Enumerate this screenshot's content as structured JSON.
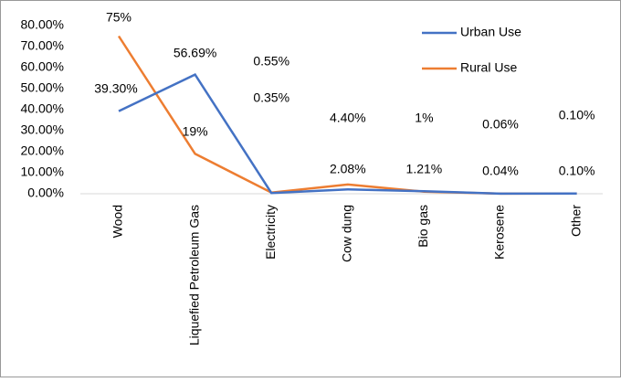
{
  "chart_data": {
    "type": "line",
    "categories": [
      "Wood",
      "Liquefied Petroleum Gas",
      "Electricity",
      "Cow dung",
      "Bio gas",
      "Kerosene",
      "Other"
    ],
    "series": [
      {
        "name": "Urban Use",
        "color": "#4472c4",
        "values": [
          39.3,
          56.69,
          0.35,
          2.08,
          1.21,
          0.04,
          0.1
        ],
        "value_labels": [
          "39.30%",
          "56.69%",
          "0.35%",
          "2.08%",
          "1.21%",
          "0.04%",
          "0.10%"
        ]
      },
      {
        "name": "Rural Use",
        "color": "#ed7d31",
        "values": [
          75,
          19,
          0.55,
          4.4,
          1,
          0.06,
          0.1
        ],
        "value_labels": [
          "75%",
          "19%",
          "0.55%",
          "4.40%",
          "1%",
          "0.06%",
          "0.10%"
        ]
      }
    ],
    "ylim": [
      0,
      80
    ],
    "yticks": [
      {
        "value": 0,
        "label": "0.00%"
      },
      {
        "value": 10,
        "label": "10.00%"
      },
      {
        "value": 20,
        "label": "20.00%"
      },
      {
        "value": 30,
        "label": "30.00%"
      },
      {
        "value": 40,
        "label": "40.00%"
      },
      {
        "value": 50,
        "label": "50.00%"
      },
      {
        "value": 60,
        "label": "60.00%"
      },
      {
        "value": 70,
        "label": "70.00%"
      },
      {
        "value": 80,
        "label": "80.00%"
      }
    ],
    "legend": "top-right"
  }
}
